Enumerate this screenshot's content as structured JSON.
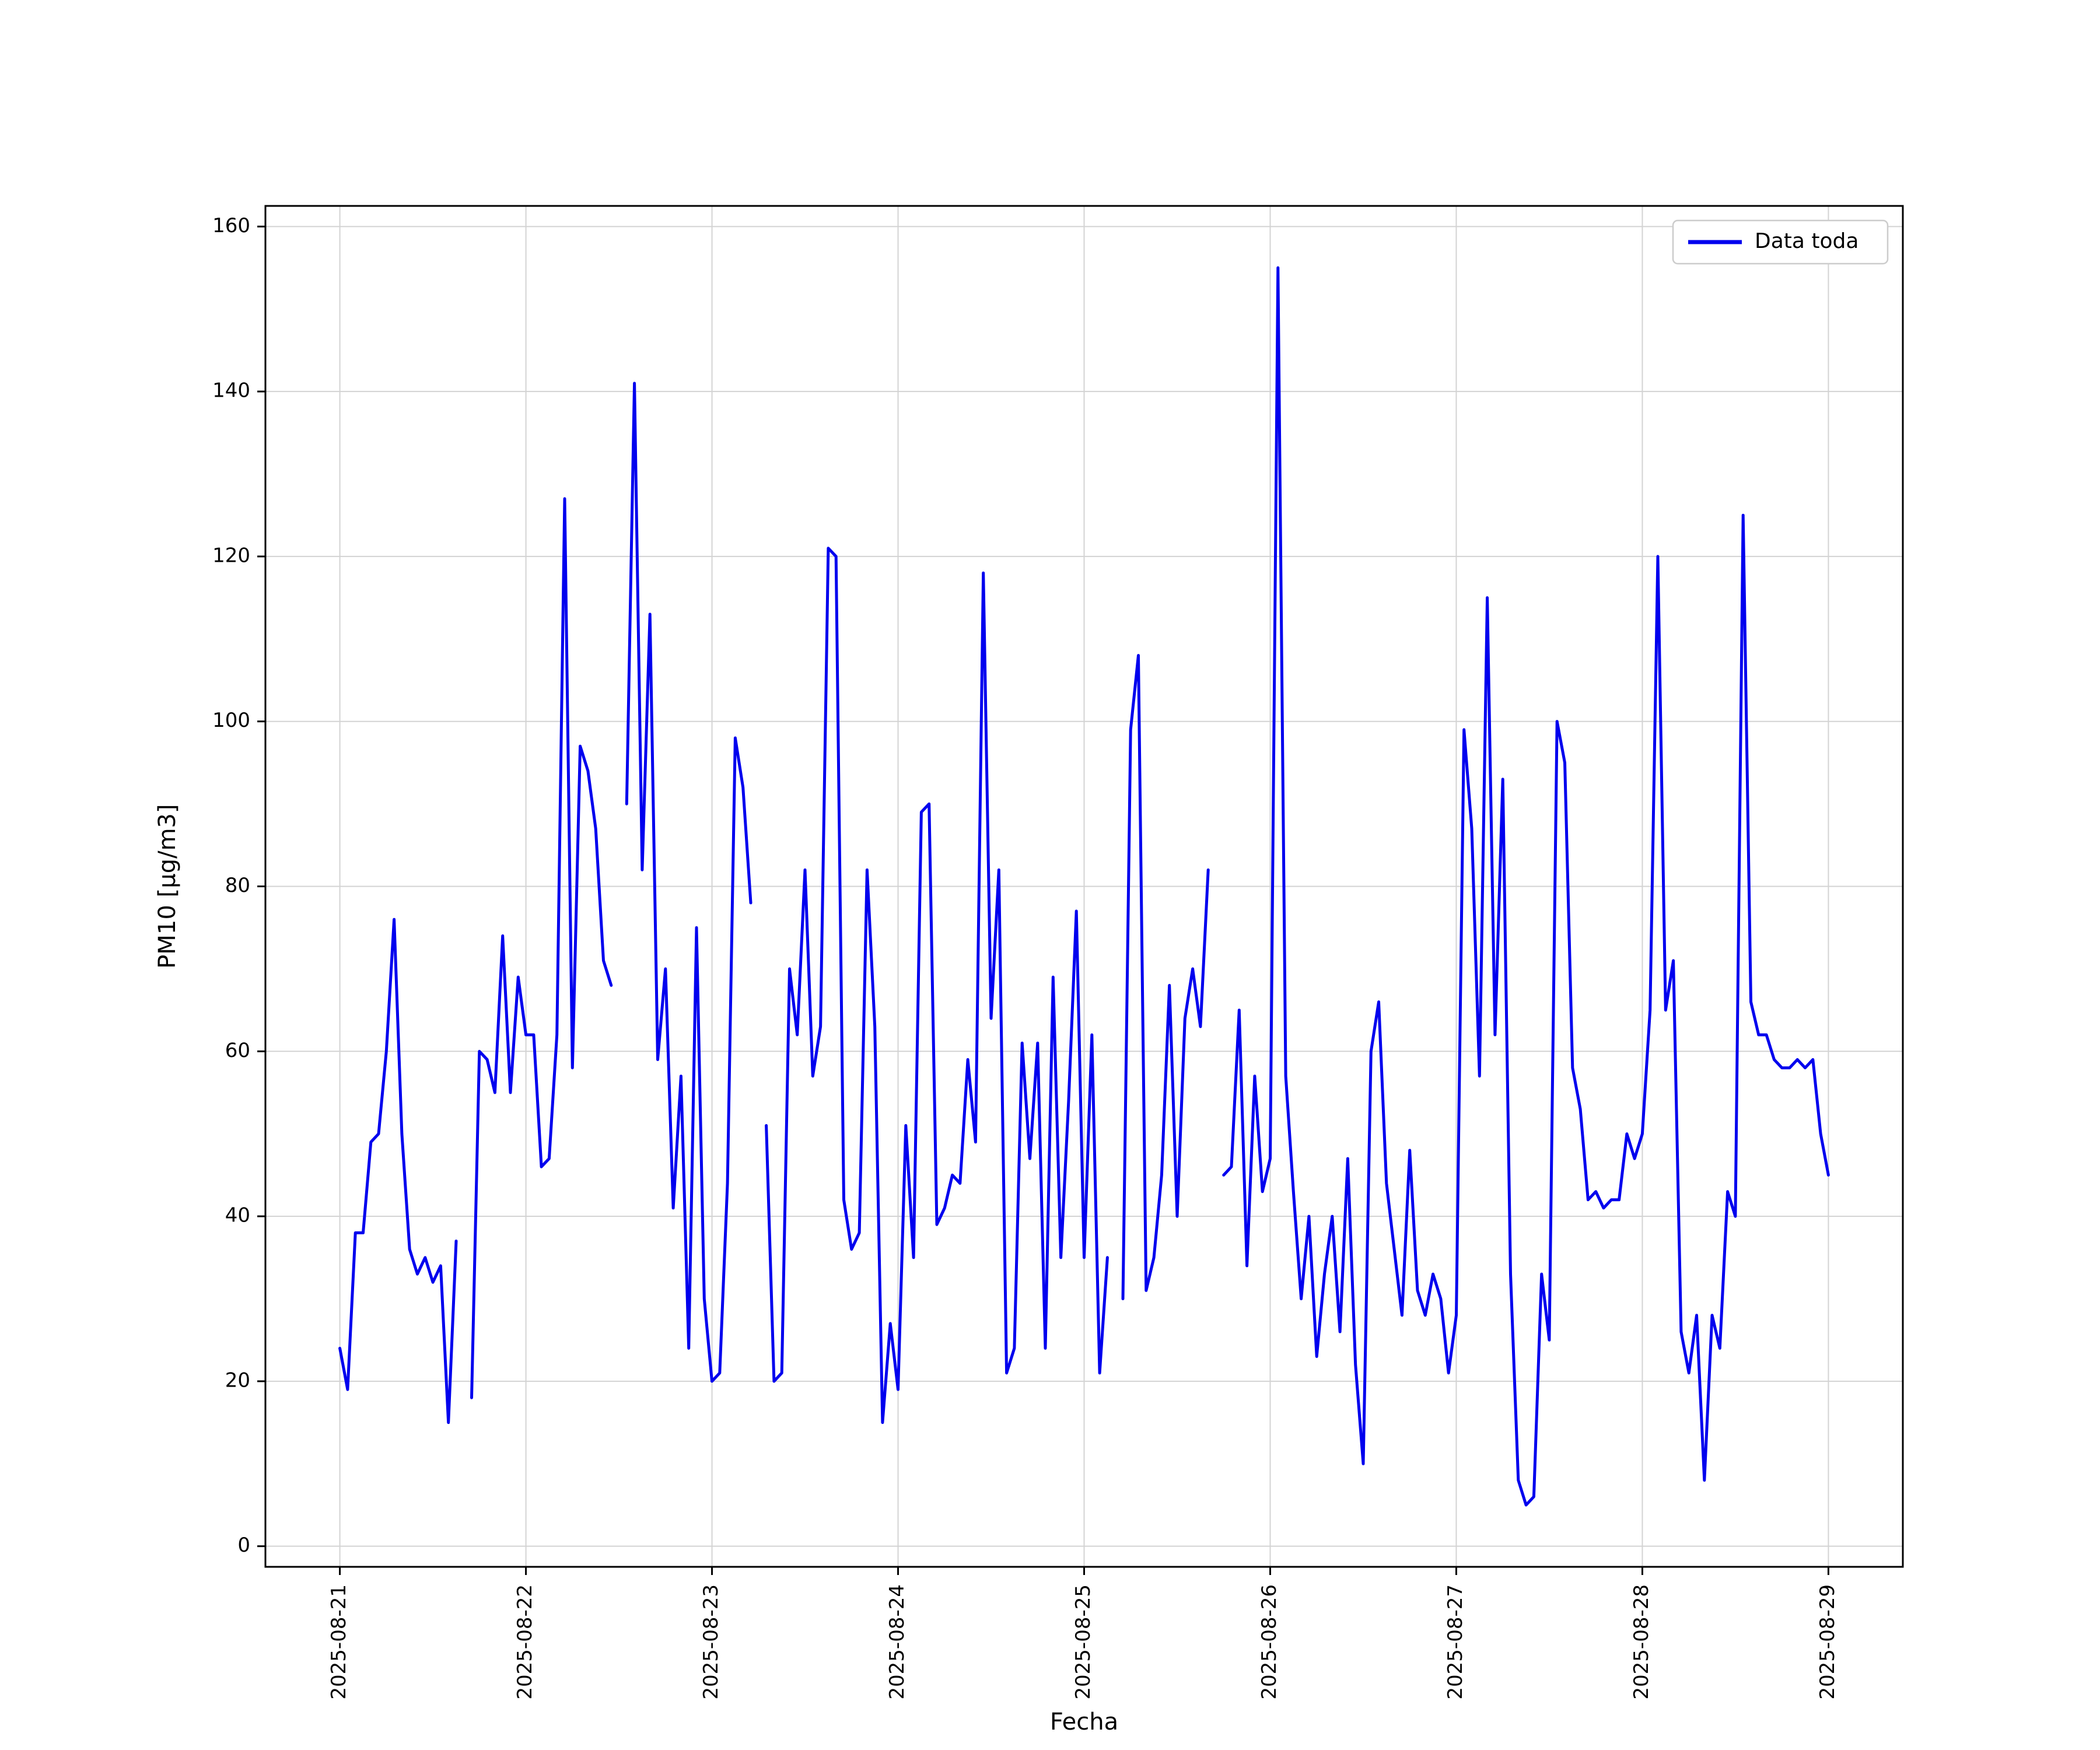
{
  "chart_data": {
    "type": "line",
    "title": "",
    "xlabel": "Fecha",
    "ylabel": "PM10 [μg/m3]",
    "legend": [
      "Data toda"
    ],
    "legend_position": "upper right",
    "line_color": "#0000ee",
    "grid": true,
    "background": "#ffffff",
    "x_unit": "hours since 2025-08-21 00:00 (index = hour, nulls are gaps in the trace)",
    "x_tick_hours": [
      0,
      24,
      48,
      72,
      96,
      120,
      144,
      168,
      192
    ],
    "x_tick_labels": [
      "2025-08-21",
      "2025-08-22",
      "2025-08-23",
      "2025-08-24",
      "2025-08-25",
      "2025-08-26",
      "2025-08-27",
      "2025-08-28",
      "2025-08-29"
    ],
    "xlim": [
      -9.6,
      201.6
    ],
    "ylim": [
      -2.5,
      162.5
    ],
    "y_ticks": [
      0,
      20,
      40,
      60,
      80,
      100,
      120,
      140,
      160
    ],
    "series": [
      {
        "name": "Data toda",
        "values": [
          24,
          19,
          38,
          38,
          49,
          50,
          60,
          76,
          50,
          36,
          33,
          35,
          32,
          34,
          15,
          37,
          null,
          18,
          60,
          59,
          55,
          74,
          55,
          69,
          62,
          62,
          46,
          47,
          62,
          127,
          58,
          97,
          94,
          87,
          71,
          68,
          null,
          90,
          141,
          82,
          113,
          59,
          70,
          41,
          57,
          24,
          75,
          30,
          20,
          21,
          44,
          98,
          92,
          78,
          null,
          51,
          20,
          21,
          70,
          62,
          82,
          57,
          63,
          121,
          120,
          42,
          36,
          38,
          82,
          63,
          15,
          27,
          19,
          51,
          35,
          89,
          90,
          39,
          41,
          45,
          44,
          59,
          49,
          118,
          64,
          82,
          21,
          24,
          61,
          47,
          61,
          24,
          69,
          35,
          54,
          77,
          35,
          62,
          21,
          35,
          null,
          30,
          99,
          108,
          31,
          35,
          45,
          68,
          40,
          64,
          70,
          63,
          82,
          null,
          45,
          46,
          65,
          34,
          57,
          43,
          47,
          155,
          57,
          43,
          30,
          40,
          23,
          33,
          40,
          26,
          47,
          22,
          10,
          60,
          66,
          44,
          36,
          28,
          48,
          31,
          28,
          33,
          30,
          21,
          28,
          99,
          87,
          57,
          115,
          62,
          93,
          33,
          8,
          5,
          6,
          33,
          25,
          100,
          95,
          58,
          53,
          42,
          43,
          41,
          42,
          42,
          50,
          47,
          50,
          65,
          120,
          65,
          71,
          26,
          21,
          28,
          8,
          28,
          24,
          43,
          40,
          125,
          66,
          62,
          62,
          59,
          58,
          58,
          59,
          58,
          59,
          50,
          45
        ]
      }
    ]
  },
  "layout_text": {
    "note": ""
  }
}
